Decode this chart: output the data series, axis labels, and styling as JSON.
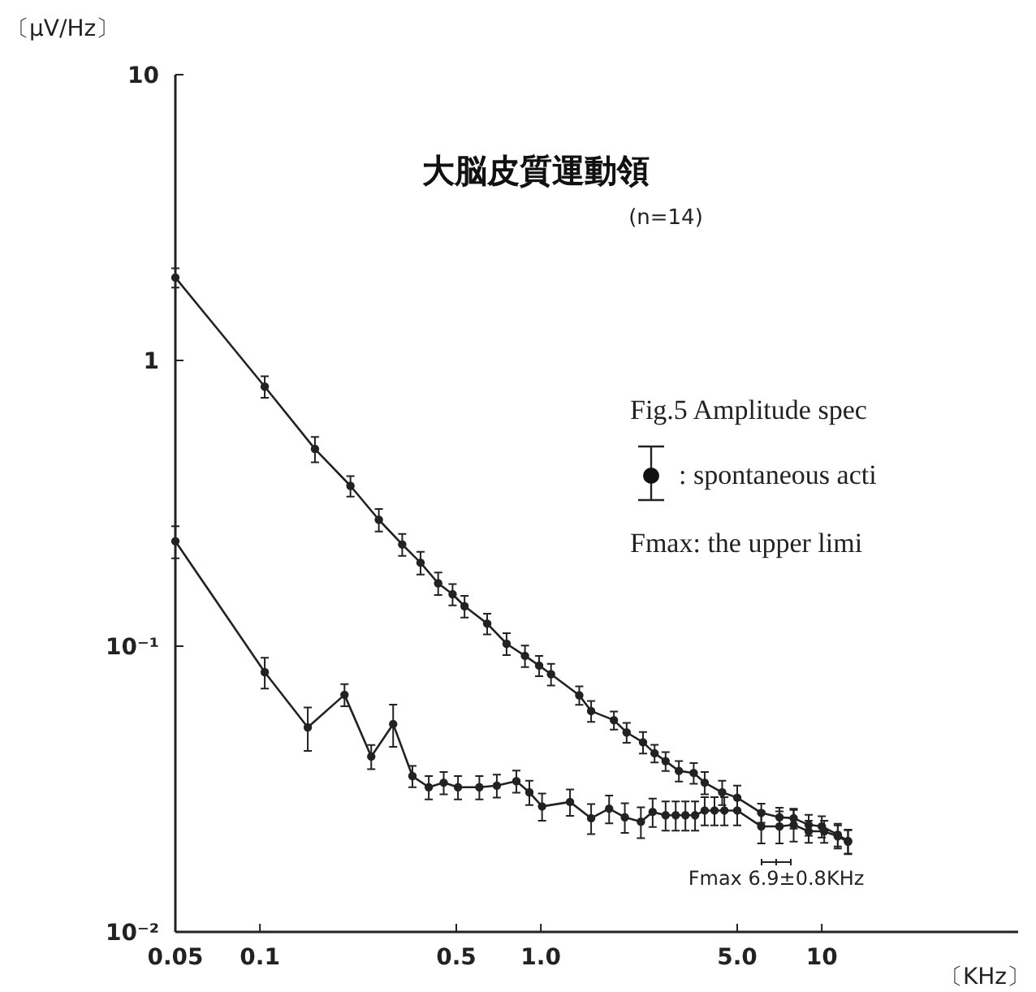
{
  "chart_data": {
    "type": "line",
    "title": "大脳皮質運動領",
    "subtitle": "(n=14)",
    "ylabel": "〔μV/Hz〕",
    "xlabel": "〔KHz〕",
    "log": "xy",
    "marker": "circle",
    "line_style": "solid",
    "grid": false,
    "xlim": [
      0.05,
      50
    ],
    "ylim": [
      0.01,
      10
    ],
    "xticks": [
      0.05,
      0.1,
      0.5,
      {
        "value": 1,
        "label": "1.0"
      },
      {
        "value": 5,
        "label": "5.0"
      },
      10
    ],
    "yticks": [
      {
        "value": 0.01,
        "label": "10⁻²"
      },
      {
        "value": 0.1,
        "label": "10⁻¹"
      },
      1,
      10
    ],
    "annotations": [
      "Fig.5 Amplitude spec",
      ": spontaneous acti",
      "Fmax: the upper limi",
      "Fmax 6.9±0.8KHz"
    ],
    "series": [
      {
        "color": "#222222",
        "x": [
          0.05,
          0.104,
          0.157,
          0.21,
          0.265,
          0.321,
          0.373,
          0.431,
          0.485,
          0.535,
          0.644,
          0.755,
          0.878,
          0.986,
          1.087,
          1.37,
          1.51,
          1.82,
          2.02,
          2.31,
          2.54,
          2.78,
          3.1,
          3.5,
          3.83,
          4.42,
          5.0,
          6.09,
          7.07,
          7.94,
          8.98,
          10.0,
          11.4,
          12.4
        ],
        "values": [
          1.95,
          0.81,
          0.49,
          0.364,
          0.277,
          0.227,
          0.196,
          0.166,
          0.152,
          0.138,
          0.12,
          0.102,
          0.0925,
          0.0855,
          0.0798,
          0.0673,
          0.0593,
          0.0551,
          0.0499,
          0.0461,
          0.0422,
          0.0396,
          0.0366,
          0.036,
          0.0333,
          0.0308,
          0.0295,
          0.0261,
          0.0252,
          0.025,
          0.0237,
          0.0234,
          0.0219,
          0.0208
        ],
        "errors": [
          0.15,
          0.07,
          0.05,
          0.03,
          0.025,
          0.02,
          0.018,
          0.015,
          0.013,
          0.012,
          0.01,
          0.009,
          0.008,
          0.007,
          0.007,
          0.005,
          0.005,
          0.004,
          0.004,
          0.004,
          0.003,
          0.003,
          0.003,
          0.003,
          0.003,
          0.003,
          0.003,
          0.002,
          0.002,
          0.002,
          0.002,
          0.002,
          0.002,
          0.002
        ]
      },
      {
        "color": "#222222",
        "x": [
          0.05,
          0.104,
          0.148,
          0.2,
          0.249,
          0.298,
          0.349,
          0.399,
          0.451,
          0.507,
          0.604,
          0.697,
          0.818,
          0.91,
          1.01,
          1.27,
          1.51,
          1.75,
          1.99,
          2.27,
          2.5,
          2.78,
          3.02,
          3.27,
          3.54,
          3.83,
          4.15,
          4.5,
          5.0,
          6.09,
          7.07,
          7.94,
          8.98,
          10.2,
          11.4,
          12.4
        ],
        "values": [
          0.233,
          0.0811,
          0.052,
          0.0676,
          0.0411,
          0.0534,
          0.0351,
          0.0321,
          0.0333,
          0.0321,
          0.0321,
          0.0325,
          0.0337,
          0.0308,
          0.0275,
          0.0285,
          0.025,
          0.027,
          0.0252,
          0.0243,
          0.0263,
          0.0256,
          0.0256,
          0.0256,
          0.0256,
          0.0266,
          0.0266,
          0.0266,
          0.0266,
          0.0234,
          0.0234,
          0.0237,
          0.0225,
          0.0225,
          0.0216,
          0.0207
        ],
        "errors": [
          0.03,
          0.01,
          0.009,
          0.006,
          0.004,
          0.009,
          0.003,
          0.003,
          0.003,
          0.003,
          0.003,
          0.003,
          0.003,
          0.003,
          0.003,
          0.003,
          0.003,
          0.003,
          0.003,
          0.003,
          0.003,
          0.003,
          0.003,
          0.003,
          0.003,
          0.003,
          0.003,
          0.003,
          0.003,
          0.003,
          0.003,
          0.003,
          0.002,
          0.002,
          0.002,
          0.002
        ]
      }
    ]
  }
}
